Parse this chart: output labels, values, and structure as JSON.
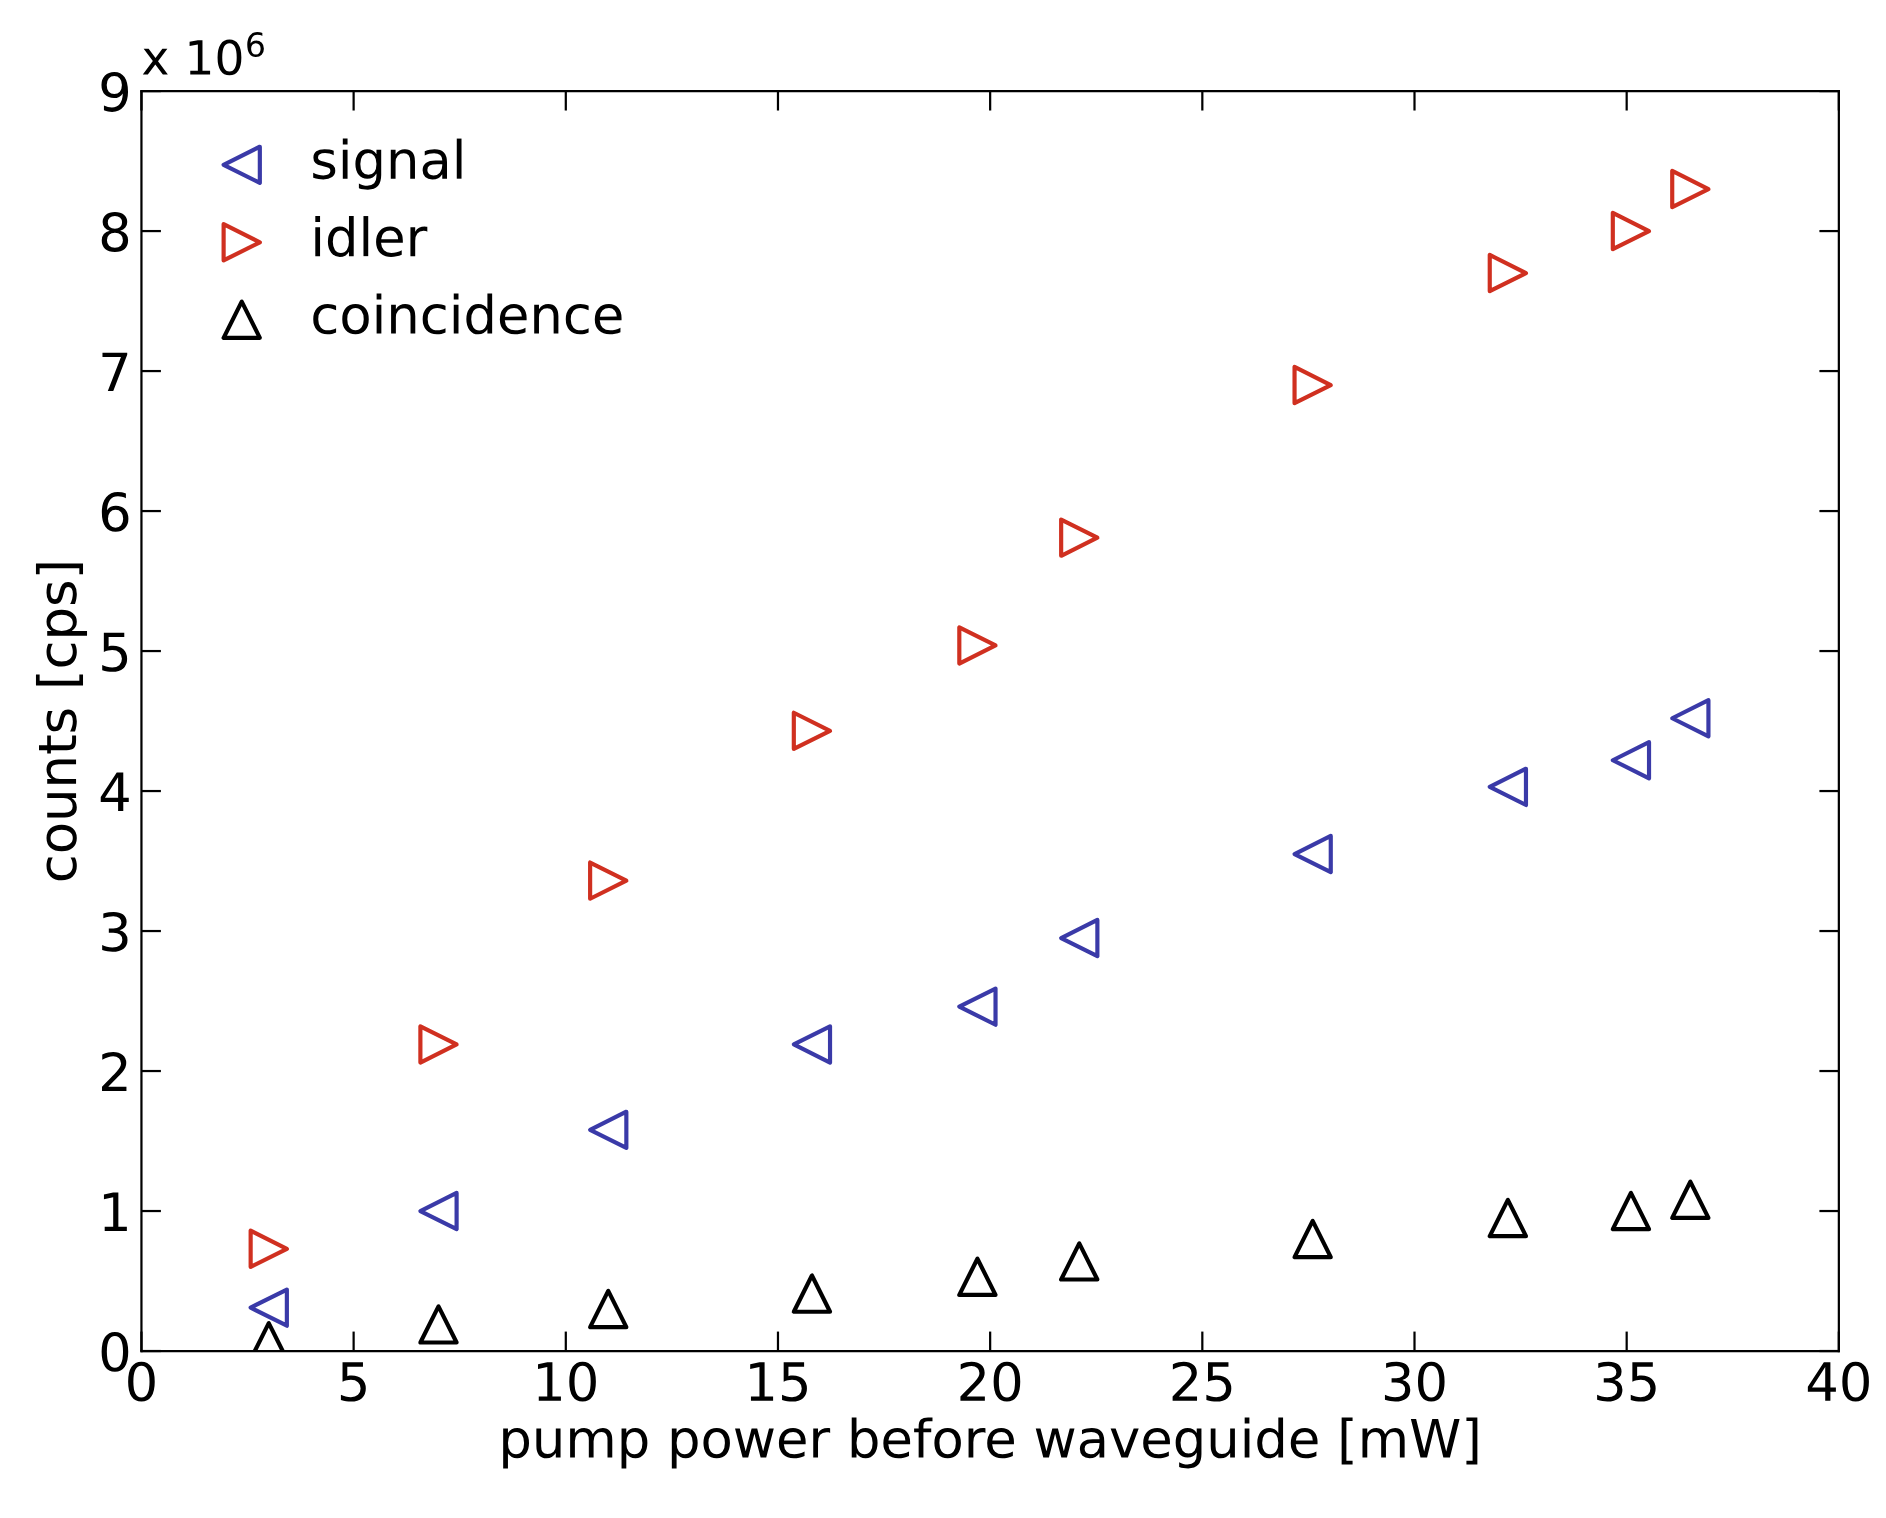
{
  "chart_data": {
    "type": "scatter",
    "xlabel": "pump power before waveguide [mW]",
    "ylabel": "counts [cps]",
    "annotations": [
      "x 10$^{6}$"
    ],
    "x": [
      3,
      7,
      11,
      15.8,
      19.7,
      22.1,
      27.6,
      32.2,
      35.1,
      36.5
    ],
    "series": [
      {
        "name": "signal",
        "color": "#3a3aa8",
        "marker": "triangle-left",
        "values": [
          0.31,
          1.0,
          1.58,
          2.19,
          2.46,
          2.95,
          3.55,
          4.03,
          4.22,
          4.52
        ]
      },
      {
        "name": "idler",
        "color": "#d03020",
        "marker": "triangle-right",
        "values": [
          0.73,
          2.19,
          3.36,
          4.43,
          5.04,
          5.81,
          6.9,
          7.7,
          8.0,
          8.3
        ]
      },
      {
        "name": "coincidence",
        "color": "#000000",
        "marker": "triangle",
        "values": [
          0.07,
          0.19,
          0.3,
          0.41,
          0.53,
          0.64,
          0.8,
          0.95,
          1.0,
          1.08
        ]
      }
    ],
    "xlim": [
      0,
      40
    ],
    "xticks": [
      0,
      5,
      10,
      15,
      20,
      25,
      30,
      35,
      40
    ],
    "ylim": [
      0,
      9
    ],
    "yticks": [
      0,
      1,
      2,
      3,
      4,
      5,
      6,
      7,
      8,
      9
    ],
    "grid": false,
    "legend": "top left"
  }
}
